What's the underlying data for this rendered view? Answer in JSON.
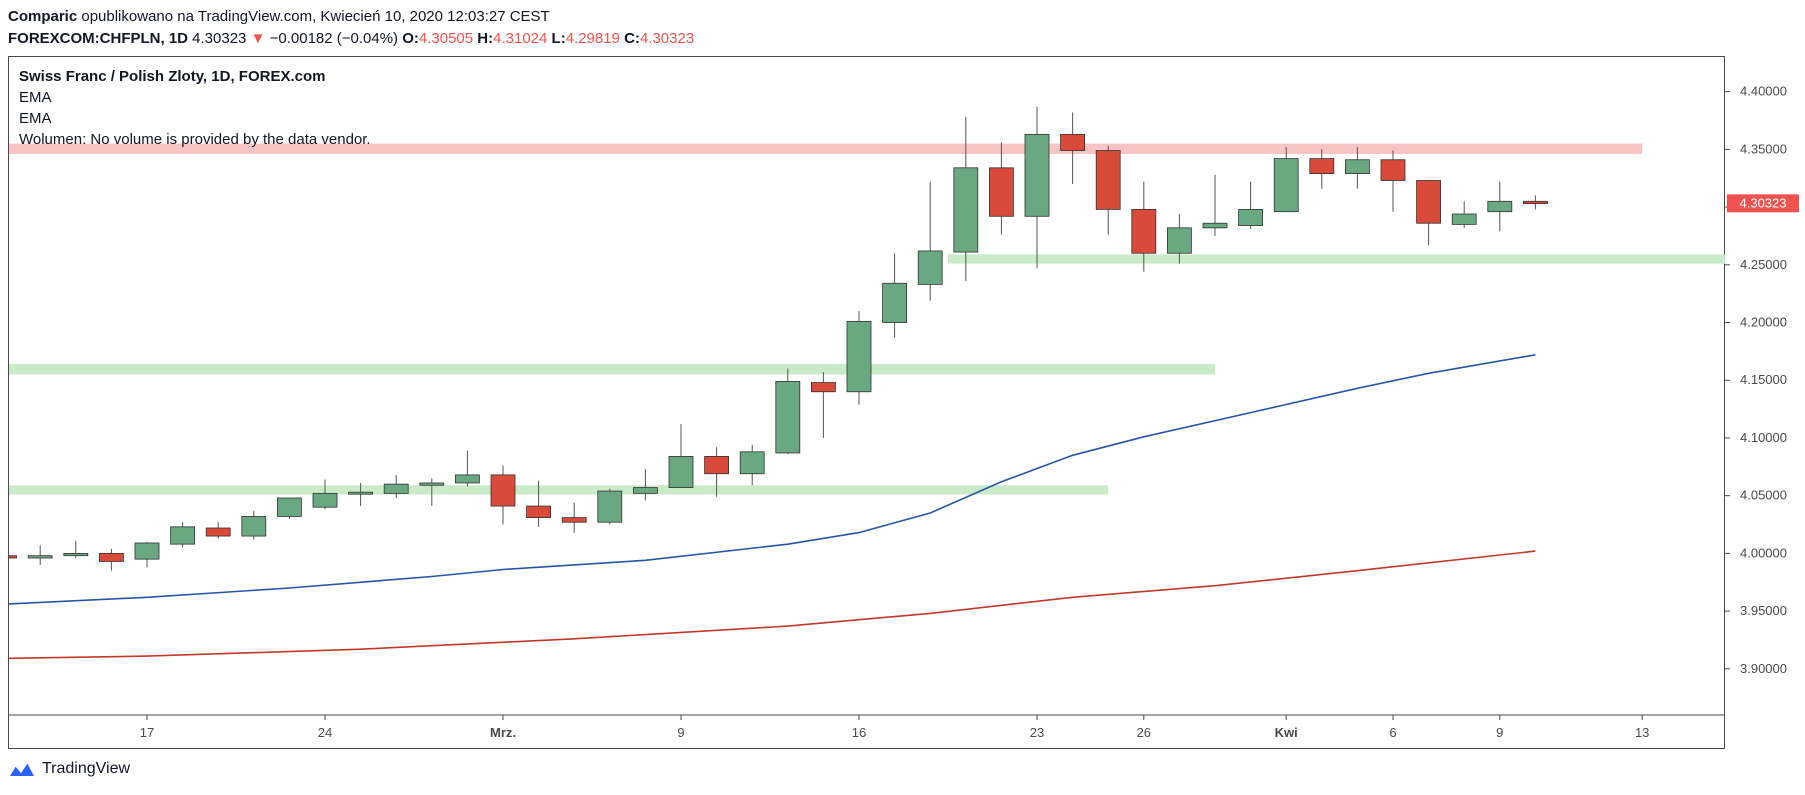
{
  "header": {
    "author": "Comparic",
    "published_text": "opublikowano na TradingView.com, Kwiecień 10, 2020 12:03:27 CEST",
    "symbol": "FOREXCOM:CHFPLN, 1D",
    "last": "4.30323",
    "change_arrow": "▼",
    "change": "−0.00182 (−0.04%)",
    "open_label": "O:",
    "open": "4.30505",
    "high_label": "H:",
    "high": "4.31024",
    "low_label": "L:",
    "low": "4.29819",
    "close_label": "C:",
    "close": "4.30323"
  },
  "legend": {
    "title": "Swiss Franc / Polish Zloty, 1D, FOREX.com",
    "ema1": "EMA",
    "ema2": "EMA",
    "volume": "Wolumen: No volume is provided by the data vendor."
  },
  "footer": {
    "brand": "TradingView"
  },
  "colors": {
    "up": "#6aa882",
    "down": "#d94a3a",
    "wick": "#555555",
    "ema_fast": "#2756a8",
    "ema_slow": "#c0392b",
    "resistance_zone": "#f9c4c4",
    "support_zone": "#c9ebc9",
    "price_label": "#ef5350"
  },
  "chart_data": {
    "type": "candlestick",
    "y_axis": {
      "ylim": [
        3.86,
        4.43
      ],
      "ticks": [
        "4.40000",
        "4.35000",
        "4.30000",
        "4.25000",
        "4.20000",
        "4.15000",
        "4.10000",
        "4.05000",
        "4.00000",
        "3.95000",
        "3.90000"
      ]
    },
    "x_axis": {
      "ticks": [
        {
          "label": "17",
          "x": 4
        },
        {
          "label": "24",
          "x": 9
        },
        {
          "label": "Mrz.",
          "x": 14
        },
        {
          "label": "9",
          "x": 19
        },
        {
          "label": "16",
          "x": 24
        },
        {
          "label": "23",
          "x": 29
        },
        {
          "label": "26",
          "x": 32
        },
        {
          "label": "Kwi",
          "x": 36
        },
        {
          "label": "6",
          "x": 39
        },
        {
          "label": "9",
          "x": 42
        },
        {
          "label": "13",
          "x": 46
        }
      ]
    },
    "candles": [
      {
        "x": 0,
        "o": 3.998,
        "h": 4.003,
        "l": 3.995,
        "c": 3.996
      },
      {
        "x": 1,
        "o": 3.996,
        "h": 4.007,
        "l": 3.99,
        "c": 3.998
      },
      {
        "x": 2,
        "o": 3.998,
        "h": 4.011,
        "l": 3.996,
        "c": 4.0
      },
      {
        "x": 3,
        "o": 4.0,
        "h": 4.004,
        "l": 3.985,
        "c": 3.993
      },
      {
        "x": 4,
        "o": 3.995,
        "h": 4.01,
        "l": 3.988,
        "c": 4.009
      },
      {
        "x": 5,
        "o": 4.008,
        "h": 4.027,
        "l": 4.005,
        "c": 4.023
      },
      {
        "x": 6,
        "o": 4.022,
        "h": 4.027,
        "l": 4.013,
        "c": 4.015
      },
      {
        "x": 7,
        "o": 4.015,
        "h": 4.037,
        "l": 4.012,
        "c": 4.032
      },
      {
        "x": 8,
        "o": 4.032,
        "h": 4.048,
        "l": 4.03,
        "c": 4.048
      },
      {
        "x": 9,
        "o": 4.04,
        "h": 4.064,
        "l": 4.038,
        "c": 4.052
      },
      {
        "x": 10,
        "o": 4.052,
        "h": 4.061,
        "l": 4.041,
        "c": 4.053
      },
      {
        "x": 11,
        "o": 4.052,
        "h": 4.068,
        "l": 4.048,
        "c": 4.06
      },
      {
        "x": 12,
        "o": 4.059,
        "h": 4.065,
        "l": 4.041,
        "c": 4.061
      },
      {
        "x": 13,
        "o": 4.061,
        "h": 4.089,
        "l": 4.058,
        "c": 4.068
      },
      {
        "x": 14,
        "o": 4.068,
        "h": 4.076,
        "l": 4.025,
        "c": 4.041
      },
      {
        "x": 15,
        "o": 4.041,
        "h": 4.063,
        "l": 4.023,
        "c": 4.031
      },
      {
        "x": 16,
        "o": 4.031,
        "h": 4.044,
        "l": 4.018,
        "c": 4.027
      },
      {
        "x": 17,
        "o": 4.027,
        "h": 4.056,
        "l": 4.025,
        "c": 4.054
      },
      {
        "x": 18,
        "o": 4.052,
        "h": 4.073,
        "l": 4.046,
        "c": 4.057
      },
      {
        "x": 19,
        "o": 4.057,
        "h": 4.112,
        "l": 4.057,
        "c": 4.084
      },
      {
        "x": 20,
        "o": 4.084,
        "h": 4.092,
        "l": 4.049,
        "c": 4.069
      },
      {
        "x": 21,
        "o": 4.069,
        "h": 4.094,
        "l": 4.059,
        "c": 4.088
      },
      {
        "x": 22,
        "o": 4.087,
        "h": 4.16,
        "l": 4.086,
        "c": 4.149
      },
      {
        "x": 23,
        "o": 4.148,
        "h": 4.157,
        "l": 4.1,
        "c": 4.14
      },
      {
        "x": 24,
        "o": 4.14,
        "h": 4.21,
        "l": 4.129,
        "c": 4.201
      },
      {
        "x": 25,
        "o": 4.2,
        "h": 4.26,
        "l": 4.187,
        "c": 4.234
      },
      {
        "x": 26,
        "o": 4.233,
        "h": 4.322,
        "l": 4.219,
        "c": 4.262
      },
      {
        "x": 27,
        "o": 4.261,
        "h": 4.378,
        "l": 4.236,
        "c": 4.334
      },
      {
        "x": 28,
        "o": 4.334,
        "h": 4.356,
        "l": 4.276,
        "c": 4.292
      },
      {
        "x": 29,
        "o": 4.292,
        "h": 4.387,
        "l": 4.247,
        "c": 4.363
      },
      {
        "x": 30,
        "o": 4.363,
        "h": 4.382,
        "l": 4.32,
        "c": 4.349
      },
      {
        "x": 31,
        "o": 4.349,
        "h": 4.353,
        "l": 4.276,
        "c": 4.298
      },
      {
        "x": 32,
        "o": 4.298,
        "h": 4.322,
        "l": 4.244,
        "c": 4.26
      },
      {
        "x": 33,
        "o": 4.26,
        "h": 4.294,
        "l": 4.251,
        "c": 4.282
      },
      {
        "x": 34,
        "o": 4.282,
        "h": 4.328,
        "l": 4.275,
        "c": 4.286
      },
      {
        "x": 35,
        "o": 4.284,
        "h": 4.322,
        "l": 4.281,
        "c": 4.298
      },
      {
        "x": 36,
        "o": 4.296,
        "h": 4.352,
        "l": 4.296,
        "c": 4.342
      },
      {
        "x": 37,
        "o": 4.342,
        "h": 4.35,
        "l": 4.316,
        "c": 4.329
      },
      {
        "x": 38,
        "o": 4.329,
        "h": 4.352,
        "l": 4.316,
        "c": 4.341
      },
      {
        "x": 39,
        "o": 4.341,
        "h": 4.349,
        "l": 4.296,
        "c": 4.323
      },
      {
        "x": 40,
        "o": 4.323,
        "h": 4.323,
        "l": 4.267,
        "c": 4.286
      },
      {
        "x": 41,
        "o": 4.285,
        "h": 4.305,
        "l": 4.282,
        "c": 4.294
      },
      {
        "x": 42,
        "o": 4.296,
        "h": 4.322,
        "l": 4.279,
        "c": 4.305
      },
      {
        "x": 43,
        "o": 4.305,
        "h": 4.31,
        "l": 4.298,
        "c": 4.303
      }
    ],
    "ema_fast": [
      [
        -4,
        3.952
      ],
      [
        0,
        3.956
      ],
      [
        4,
        3.962
      ],
      [
        8,
        3.97
      ],
      [
        12,
        3.98
      ],
      [
        14,
        3.986
      ],
      [
        18,
        3.994
      ],
      [
        22,
        4.008
      ],
      [
        24,
        4.018
      ],
      [
        26,
        4.035
      ],
      [
        28,
        4.062
      ],
      [
        30,
        4.085
      ],
      [
        32,
        4.101
      ],
      [
        35,
        4.122
      ],
      [
        38,
        4.143
      ],
      [
        40,
        4.156
      ],
      [
        43,
        4.172
      ]
    ],
    "ema_slow": [
      [
        -4,
        3.907
      ],
      [
        4,
        3.911
      ],
      [
        10,
        3.917
      ],
      [
        16,
        3.926
      ],
      [
        22,
        3.937
      ],
      [
        26,
        3.948
      ],
      [
        30,
        3.962
      ],
      [
        34,
        3.972
      ],
      [
        38,
        3.985
      ],
      [
        43,
        4.002
      ]
    ],
    "zones": [
      {
        "kind": "resistance",
        "y_low": 4.346,
        "y_high": 4.355,
        "x_from": -4,
        "x_to": 46
      },
      {
        "kind": "support",
        "y_low": 4.251,
        "y_high": 4.259,
        "x_from": 26.5,
        "x_to": 48.5
      },
      {
        "kind": "support",
        "y_low": 4.155,
        "y_high": 4.164,
        "x_from": -4,
        "x_to": 34
      },
      {
        "kind": "support",
        "y_low": 4.051,
        "y_high": 4.059,
        "x_from": -4,
        "x_to": 31
      }
    ],
    "last_price": {
      "value": 4.30323,
      "label": "4.30323"
    }
  }
}
